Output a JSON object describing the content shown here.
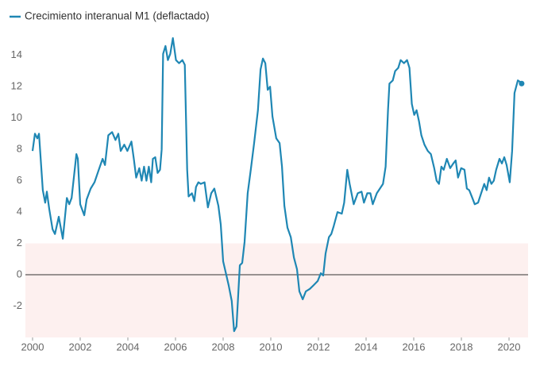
{
  "chart_data": {
    "type": "line",
    "series": [
      {
        "name": "Crecimiento interanual M1 (deflactado)",
        "color": "#1f87b4",
        "x": [
          2000.0,
          2000.1,
          2000.2,
          2000.27,
          2000.43,
          2000.53,
          2000.6,
          2000.7,
          2000.84,
          2000.94,
          2001.1,
          2001.27,
          2001.44,
          2001.54,
          2001.64,
          2001.74,
          2001.84,
          2001.9,
          2002.0,
          2002.17,
          2002.27,
          2002.44,
          2002.6,
          2002.78,
          2002.94,
          2003.04,
          2003.18,
          2003.34,
          2003.48,
          2003.6,
          2003.7,
          2003.85,
          2003.98,
          2004.15,
          2004.25,
          2004.35,
          2004.48,
          2004.58,
          2004.68,
          2004.78,
          2004.88,
          2004.98,
          2005.05,
          2005.15,
          2005.25,
          2005.35,
          2005.42,
          2005.48,
          2005.58,
          2005.68,
          2005.78,
          2005.89,
          2006.02,
          2006.15,
          2006.29,
          2006.39,
          2006.49,
          2006.55,
          2006.69,
          2006.79,
          2006.86,
          2006.96,
          2007.06,
          2007.22,
          2007.36,
          2007.5,
          2007.63,
          2007.8,
          2007.9,
          2008.0,
          2008.1,
          2008.23,
          2008.36,
          2008.46,
          2008.56,
          2008.7,
          2008.8,
          2008.9,
          2009.03,
          2009.16,
          2009.3,
          2009.46,
          2009.57,
          2009.67,
          2009.77,
          2009.87,
          2009.97,
          2010.07,
          2010.23,
          2010.37,
          2010.47,
          2010.57,
          2010.7,
          2010.84,
          2010.97,
          2011.1,
          2011.2,
          2011.34,
          2011.47,
          2011.64,
          2011.8,
          2011.97,
          2012.1,
          2012.2,
          2012.3,
          2012.44,
          2012.54,
          2012.64,
          2012.8,
          2012.98,
          2013.08,
          2013.21,
          2013.31,
          2013.48,
          2013.65,
          2013.81,
          2013.91,
          2014.05,
          2014.18,
          2014.28,
          2014.45,
          2014.58,
          2014.71,
          2014.82,
          2014.92,
          2014.98,
          2015.12,
          2015.22,
          2015.35,
          2015.45,
          2015.59,
          2015.72,
          2015.82,
          2015.92,
          2016.02,
          2016.12,
          2016.22,
          2016.32,
          2016.45,
          2016.59,
          2016.72,
          2016.86,
          2016.96,
          2017.06,
          2017.16,
          2017.26,
          2017.39,
          2017.53,
          2017.66,
          2017.76,
          2017.86,
          2017.99,
          2018.13,
          2018.23,
          2018.33,
          2018.46,
          2018.56,
          2018.7,
          2018.83,
          2018.96,
          2019.06,
          2019.16,
          2019.26,
          2019.36,
          2019.46,
          2019.6,
          2019.7,
          2019.8,
          2019.9,
          2020.03,
          2020.13,
          2020.23,
          2020.37,
          2020.47,
          2020.53
        ],
        "values": [
          7.9,
          9.0,
          8.7,
          9.0,
          5.4,
          4.6,
          5.3,
          4.2,
          2.9,
          2.6,
          3.7,
          2.3,
          4.9,
          4.5,
          4.9,
          6.3,
          7.7,
          7.4,
          4.5,
          3.8,
          4.8,
          5.5,
          5.9,
          6.7,
          7.4,
          7.0,
          8.9,
          9.1,
          8.6,
          9.0,
          7.9,
          8.3,
          7.9,
          8.5,
          7.4,
          6.2,
          6.8,
          6.0,
          6.9,
          6.0,
          6.9,
          5.9,
          7.4,
          7.5,
          6.5,
          6.7,
          8.0,
          14.1,
          14.6,
          13.7,
          14.1,
          15.1,
          13.7,
          13.5,
          13.7,
          13.4,
          6.7,
          5.0,
          5.2,
          4.7,
          5.6,
          5.9,
          5.8,
          5.9,
          4.3,
          5.2,
          5.5,
          4.4,
          3.2,
          0.86,
          0.2,
          -0.66,
          -1.67,
          -3.6,
          -3.3,
          0.6,
          0.76,
          2.1,
          5.2,
          6.7,
          8.4,
          10.5,
          13.1,
          13.8,
          13.5,
          11.8,
          12.0,
          10.1,
          8.7,
          8.4,
          6.9,
          4.4,
          3.0,
          2.4,
          1.1,
          0.35,
          -1.06,
          -1.57,
          -1.06,
          -0.9,
          -0.66,
          -0.4,
          0.1,
          -0.05,
          1.36,
          2.4,
          2.6,
          3.1,
          4.0,
          3.9,
          4.6,
          6.7,
          5.8,
          4.5,
          5.2,
          5.3,
          4.6,
          5.2,
          5.2,
          4.5,
          5.2,
          5.5,
          5.8,
          6.9,
          10.5,
          12.2,
          12.4,
          13.0,
          13.2,
          13.7,
          13.5,
          13.7,
          13.2,
          10.9,
          10.2,
          10.5,
          9.8,
          8.9,
          8.3,
          7.9,
          7.7,
          6.8,
          6.0,
          5.8,
          6.9,
          6.7,
          7.4,
          6.8,
          7.1,
          7.3,
          6.2,
          6.8,
          6.7,
          5.5,
          5.4,
          4.9,
          4.5,
          4.6,
          5.2,
          5.8,
          5.4,
          6.2,
          5.8,
          6.0,
          6.7,
          7.4,
          7.1,
          7.5,
          7.0,
          5.9,
          7.9,
          11.6,
          12.4,
          12.3,
          12.2
        ]
      }
    ],
    "xlim": [
      1999.7,
      2020.8
    ],
    "xticks": [
      2000,
      2002,
      2004,
      2006,
      2008,
      2010,
      2012,
      2014,
      2016,
      2018,
      2020
    ],
    "ylim": [
      -4,
      15
    ],
    "yticks": [
      -2,
      0,
      2,
      4,
      6,
      8,
      10,
      12,
      14
    ],
    "highlight_range": [
      -4,
      2
    ],
    "highlight_color": "#fdf0ef",
    "reference_line": 0,
    "end_marker": true,
    "legend": "top-left"
  }
}
